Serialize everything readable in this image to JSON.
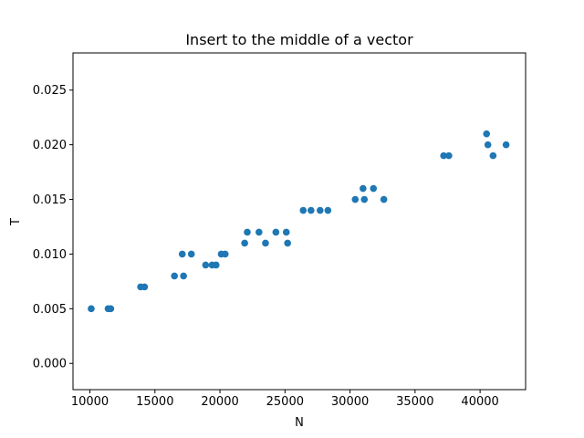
{
  "chart_data": {
    "type": "scatter",
    "title": "Insert to the middle of a vector",
    "xlabel": "N",
    "ylabel": "T",
    "xlim": [
      8700,
      43500
    ],
    "ylim": [
      -0.0024,
      0.0284
    ],
    "xticks": [
      10000,
      15000,
      20000,
      25000,
      30000,
      35000,
      40000
    ],
    "yticks": [
      0.0,
      0.005,
      0.01,
      0.015,
      0.02,
      0.025
    ],
    "xtick_labels": [
      "10000",
      "15000",
      "20000",
      "25000",
      "30000",
      "35000",
      "40000"
    ],
    "ytick_labels": [
      "0.000",
      "0.005",
      "0.010",
      "0.015",
      "0.020",
      "0.025"
    ],
    "grid": false,
    "marker_color": "#1f77b4",
    "points": [
      {
        "x": 10100,
        "y": 0.005
      },
      {
        "x": 11400,
        "y": 0.005
      },
      {
        "x": 11600,
        "y": 0.005
      },
      {
        "x": 13900,
        "y": 0.007
      },
      {
        "x": 14200,
        "y": 0.007
      },
      {
        "x": 16500,
        "y": 0.008
      },
      {
        "x": 17100,
        "y": 0.01
      },
      {
        "x": 17200,
        "y": 0.008
      },
      {
        "x": 17800,
        "y": 0.01
      },
      {
        "x": 18900,
        "y": 0.009
      },
      {
        "x": 19400,
        "y": 0.009
      },
      {
        "x": 19700,
        "y": 0.009
      },
      {
        "x": 20100,
        "y": 0.01
      },
      {
        "x": 20400,
        "y": 0.01
      },
      {
        "x": 21900,
        "y": 0.011
      },
      {
        "x": 22100,
        "y": 0.012
      },
      {
        "x": 23000,
        "y": 0.012
      },
      {
        "x": 23500,
        "y": 0.011
      },
      {
        "x": 24300,
        "y": 0.012
      },
      {
        "x": 25100,
        "y": 0.012
      },
      {
        "x": 25200,
        "y": 0.011
      },
      {
        "x": 26400,
        "y": 0.014
      },
      {
        "x": 27000,
        "y": 0.014
      },
      {
        "x": 27700,
        "y": 0.014
      },
      {
        "x": 28300,
        "y": 0.014
      },
      {
        "x": 30400,
        "y": 0.015
      },
      {
        "x": 31000,
        "y": 0.016
      },
      {
        "x": 31100,
        "y": 0.015
      },
      {
        "x": 31800,
        "y": 0.016
      },
      {
        "x": 32600,
        "y": 0.015
      },
      {
        "x": 37200,
        "y": 0.019
      },
      {
        "x": 37600,
        "y": 0.019
      },
      {
        "x": 40500,
        "y": 0.021
      },
      {
        "x": 40600,
        "y": 0.02
      },
      {
        "x": 41000,
        "y": 0.019
      },
      {
        "x": 42000,
        "y": 0.02
      }
    ]
  }
}
